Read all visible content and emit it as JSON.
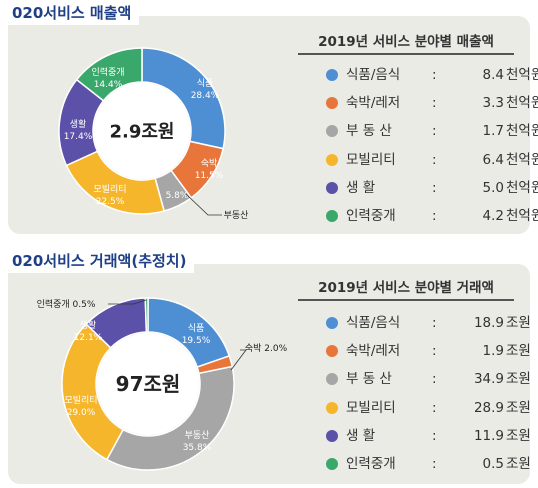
{
  "colors": {
    "food": "#4e8fd4",
    "lodging": "#e8763a",
    "realestate": "#a6a6a6",
    "mobility": "#f6b62b",
    "living": "#5b51a8",
    "staffing": "#3aa86b"
  },
  "chart_data": [
    {
      "type": "pie",
      "title": "020서비스 매출액",
      "center_label": "2.9조원",
      "legend_title": "2019년 서비스 분야별 매출액",
      "slices": [
        {
          "key": "food",
          "label": "식품",
          "pct": 28.4,
          "pct_label": "28.4%",
          "legend_label": "식품/음식",
          "value": 8.4,
          "value_label": "8.4",
          "unit": "천억원"
        },
        {
          "key": "lodging",
          "label": "숙박",
          "pct": 11.5,
          "pct_label": "11.5%",
          "legend_label": "숙박/레저",
          "value": 3.3,
          "value_label": "3.3",
          "unit": "천억원"
        },
        {
          "key": "realestate",
          "label": "부동산",
          "pct": 5.8,
          "pct_label": "5.8%",
          "legend_label": "부 동 산",
          "value": 1.7,
          "value_label": "1.7",
          "unit": "천억원"
        },
        {
          "key": "mobility",
          "label": "모빌리티",
          "pct": 22.5,
          "pct_label": "22.5%",
          "legend_label": "모빌리티",
          "value": 6.4,
          "value_label": "6.4",
          "unit": "천억원"
        },
        {
          "key": "living",
          "label": "생활",
          "pct": 17.4,
          "pct_label": "17.4%",
          "legend_label": "생 활",
          "value": 5.0,
          "value_label": "5.0",
          "unit": "천억원"
        },
        {
          "key": "staffing",
          "label": "인력중개",
          "pct": 14.4,
          "pct_label": "14.4%",
          "legend_label": "인력중개",
          "value": 4.2,
          "value_label": "4.2",
          "unit": "천억원"
        }
      ]
    },
    {
      "type": "pie",
      "title": "020서비스 거래액(추정치)",
      "center_label": "97조원",
      "legend_title": "2019년 서비스 분야별 거래액",
      "slices": [
        {
          "key": "food",
          "label": "식품",
          "pct": 19.5,
          "pct_label": "19.5%",
          "legend_label": "식품/음식",
          "value": 18.9,
          "value_label": "18.9",
          "unit": "조원"
        },
        {
          "key": "lodging",
          "label": "숙박",
          "pct": 2.0,
          "pct_label": "2.0%",
          "legend_label": "숙박/레저",
          "value": 1.9,
          "value_label": "1.9",
          "unit": "조원"
        },
        {
          "key": "realestate",
          "label": "부동산",
          "pct": 35.8,
          "pct_label": "35.8%",
          "legend_label": "부 동 산",
          "value": 34.9,
          "value_label": "34.9",
          "unit": "조원"
        },
        {
          "key": "mobility",
          "label": "모빌리티",
          "pct": 29.0,
          "pct_label": "29.0%",
          "legend_label": "모빌리티",
          "value": 28.9,
          "value_label": "28.9",
          "unit": "조원"
        },
        {
          "key": "living",
          "label": "생활",
          "pct": 12.1,
          "pct_label": "12.1%",
          "legend_label": "생 활",
          "value": 11.9,
          "value_label": "11.9",
          "unit": "조원"
        },
        {
          "key": "staffing",
          "label": "인력중개",
          "pct": 0.5,
          "pct_label": "0.5%",
          "legend_label": "인력중개",
          "value": 0.5,
          "value_label": "0.5",
          "unit": "조원"
        }
      ]
    }
  ]
}
